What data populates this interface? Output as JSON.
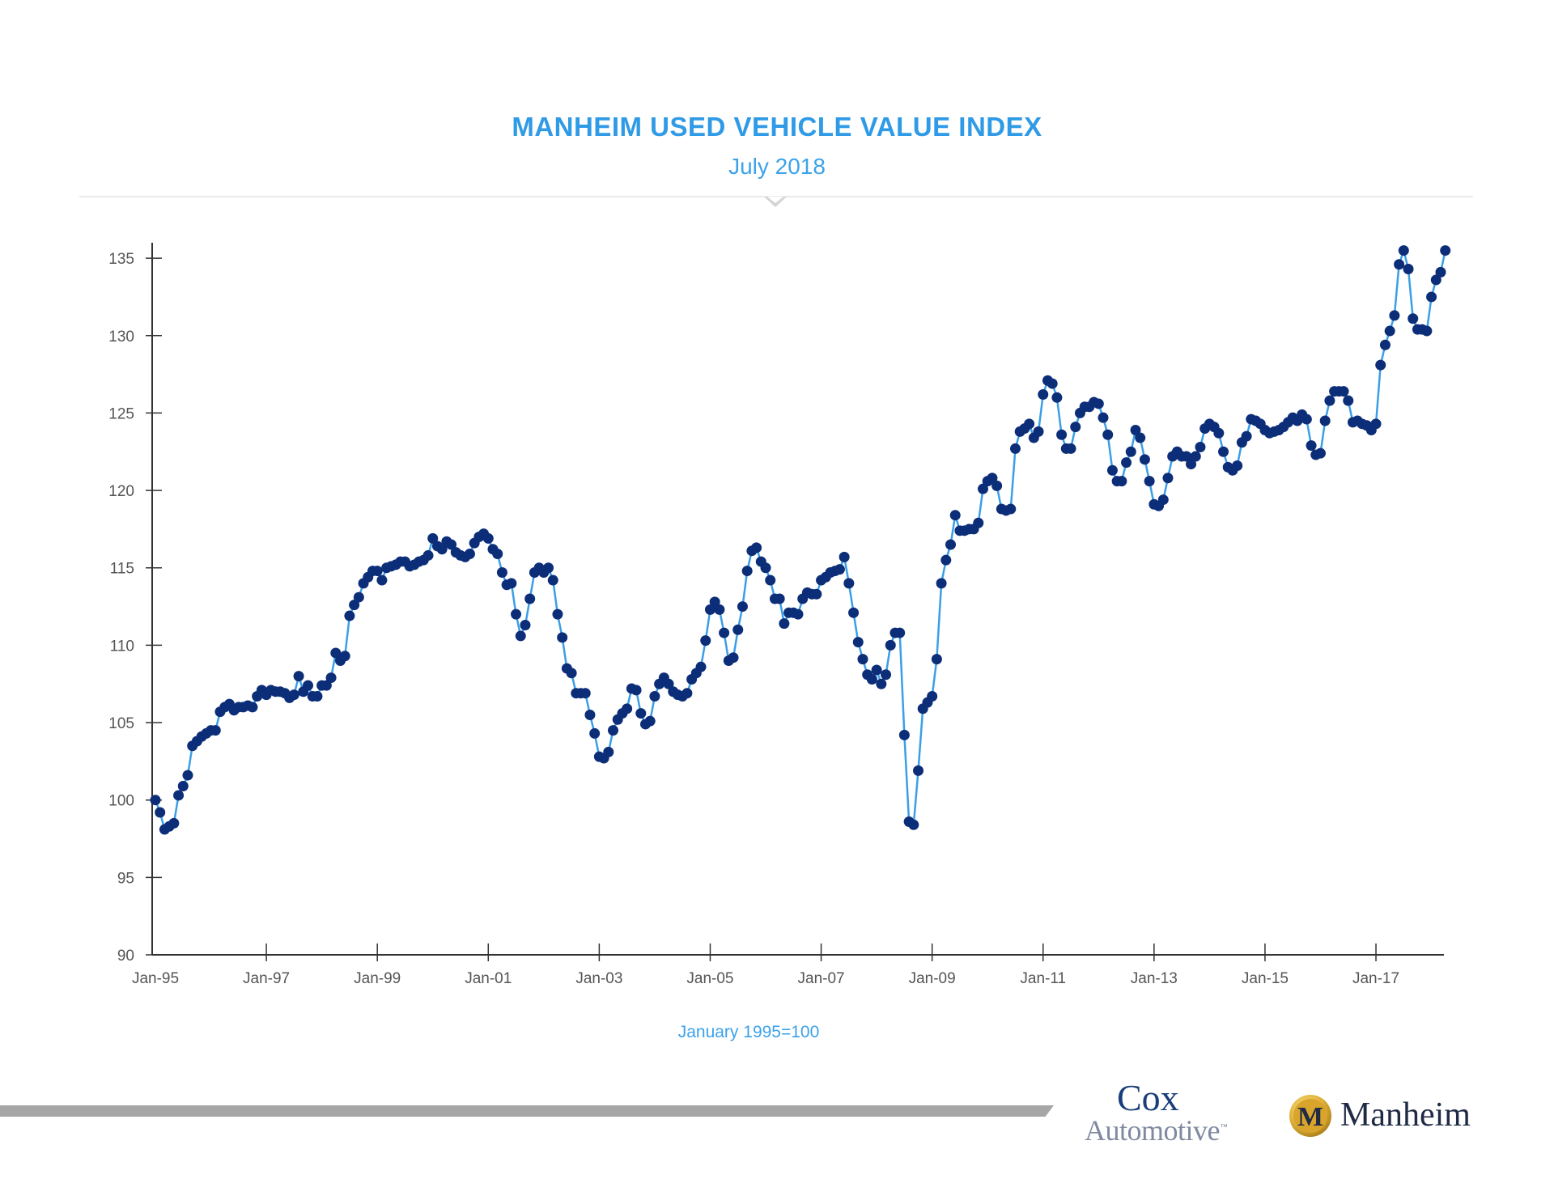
{
  "header": {
    "title": "MANHEIM USED VEHICLE VALUE INDEX",
    "subtitle": "July 2018"
  },
  "footnote": "January 1995=100",
  "logos": {
    "cox_line1": "Cox",
    "cox_line2": "Automotive",
    "cox_tm": "™",
    "manheim_word": "Manheim",
    "manheim_badge_letter": "M"
  },
  "colors": {
    "title": "#2f9ae6",
    "line": "#3a9fe8",
    "marker": "#0c2d78",
    "axis": "#333333"
  },
  "chart_data": {
    "type": "line",
    "title": "MANHEIM USED VEHICLE VALUE INDEX",
    "subtitle": "July 2018",
    "xlabel": "January 1995=100",
    "ylabel": "",
    "x_start": "1995-01",
    "x_end": "2018-07",
    "frequency": "monthly",
    "xlim": [
      "1995-01",
      "2018-07"
    ],
    "ylim": [
      90,
      136
    ],
    "x_tick_labels": [
      "Jan-95",
      "Jan-97",
      "Jan-99",
      "Jan-01",
      "Jan-03",
      "Jan-05",
      "Jan-07",
      "Jan-09",
      "Jan-11",
      "Jan-13",
      "Jan-15",
      "Jan-17"
    ],
    "y_ticks": [
      90,
      95,
      100,
      105,
      110,
      115,
      120,
      125,
      130,
      135
    ],
    "grid": false,
    "markers": true,
    "series": [
      {
        "values": [
          100.0,
          99.2,
          98.1,
          98.3,
          98.5,
          100.3,
          100.9,
          101.6,
          103.5,
          103.8,
          104.1,
          104.3,
          104.5,
          104.5,
          105.7,
          106.0,
          106.2,
          105.8,
          106.0,
          106.0,
          106.1,
          106.0,
          106.7,
          107.1,
          106.8,
          107.1,
          107.0,
          107.0,
          106.9,
          106.6,
          106.8,
          108.0,
          107.0,
          107.4,
          106.7,
          106.7,
          107.4,
          107.4,
          107.9,
          109.5,
          109.0,
          109.3,
          111.9,
          112.6,
          113.1,
          114.0,
          114.4,
          114.8,
          114.8,
          114.2,
          115.0,
          115.1,
          115.2,
          115.4,
          115.4,
          115.1,
          115.2,
          115.4,
          115.5,
          115.8,
          116.9,
          116.4,
          116.2,
          116.7,
          116.5,
          116.0,
          115.8,
          115.7,
          115.9,
          116.6,
          117.0,
          117.2,
          116.9,
          116.2,
          115.9,
          114.7,
          113.9,
          114.0,
          112.0,
          110.6,
          111.3,
          113.0,
          114.7,
          115.0,
          114.7,
          115.0,
          114.2,
          112.0,
          110.5,
          108.5,
          108.2,
          106.9,
          106.9,
          106.9,
          105.5,
          104.3,
          102.8,
          102.7,
          103.1,
          104.5,
          105.2,
          105.6,
          105.9,
          107.2,
          107.1,
          105.6,
          104.9,
          105.1,
          106.7,
          107.5,
          107.9,
          107.5,
          107.0,
          106.8,
          106.7,
          106.9,
          107.8,
          108.2,
          108.6,
          110.3,
          112.3,
          112.8,
          112.3,
          110.8,
          109.0,
          109.2,
          111.0,
          112.5,
          114.8,
          116.1,
          116.3,
          115.4,
          115.0,
          114.2,
          113.0,
          113.0,
          111.4,
          112.1,
          112.1,
          112.0,
          113.0,
          113.4,
          113.3,
          113.3,
          114.2,
          114.4,
          114.7,
          114.8,
          114.9,
          115.7,
          114.0,
          112.1,
          110.2,
          109.1,
          108.1,
          107.8,
          108.4,
          107.5,
          108.1,
          110.0,
          110.8,
          110.8,
          104.2,
          98.6,
          98.4,
          101.9,
          105.9,
          106.3,
          106.7,
          109.1,
          114.0,
          115.5,
          116.5,
          118.4,
          117.4,
          117.4,
          117.5,
          117.5,
          117.9,
          120.1,
          120.6,
          120.8,
          120.3,
          118.8,
          118.7,
          118.8,
          122.7,
          123.8,
          124.0,
          124.3,
          123.4,
          123.8,
          126.2,
          127.1,
          126.9,
          126.0,
          123.6,
          122.7,
          122.7,
          124.1,
          125.0,
          125.4,
          125.4,
          125.7,
          125.6,
          124.7,
          123.6,
          121.3,
          120.6,
          120.6,
          121.8,
          122.5,
          123.9,
          123.4,
          122.0,
          120.6,
          119.1,
          119.0,
          119.4,
          120.8,
          122.2,
          122.5,
          122.2,
          122.2,
          121.7,
          122.2,
          122.8,
          124.0,
          124.3,
          124.1,
          123.7,
          122.5,
          121.5,
          121.3,
          121.6,
          123.1,
          123.5,
          124.6,
          124.5,
          124.3,
          123.9,
          123.7,
          123.8,
          123.9,
          124.1,
          124.4,
          124.7,
          124.5,
          124.9,
          124.6,
          122.9,
          122.3,
          122.4,
          124.5,
          125.8,
          126.4,
          126.4,
          126.4,
          125.8,
          124.4,
          124.5,
          124.3,
          124.2,
          123.9,
          124.3,
          128.1,
          129.4,
          130.3,
          131.3,
          134.6,
          135.5,
          134.3,
          131.1,
          130.4,
          130.4,
          130.3,
          132.5,
          133.6,
          134.1,
          135.5
        ]
      }
    ]
  }
}
